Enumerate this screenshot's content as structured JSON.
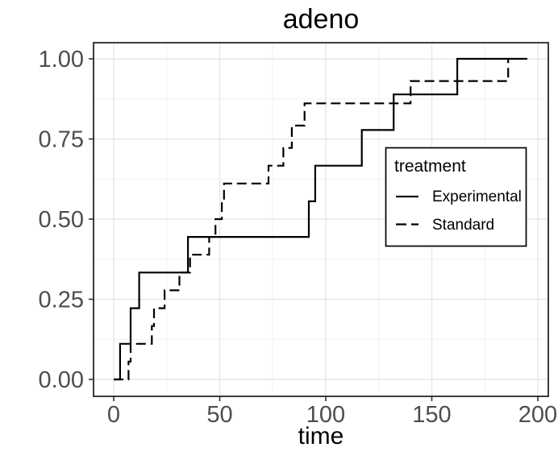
{
  "chart_data": {
    "type": "line",
    "subtype": "kaplan-meier-cumulative-event-step",
    "title": "adeno",
    "xlabel": "time",
    "ylabel": "",
    "xlim": [
      0,
      200
    ],
    "ylim": [
      0,
      1
    ],
    "x_ticks": [
      {
        "v": 0,
        "label": "0"
      },
      {
        "v": 50,
        "label": "50"
      },
      {
        "v": 100,
        "label": "100"
      },
      {
        "v": 150,
        "label": "150"
      },
      {
        "v": 200,
        "label": "200"
      }
    ],
    "y_ticks": [
      {
        "v": 0,
        "label": "0.00"
      },
      {
        "v": 0.25,
        "label": "0.25"
      },
      {
        "v": 0.5,
        "label": "0.50"
      },
      {
        "v": 0.75,
        "label": "0.75"
      },
      {
        "v": 1,
        "label": "1.00"
      }
    ],
    "grid": {
      "major": true,
      "minor": true,
      "major_color": "#e6e6e6",
      "minor_color": "#f2f2f2"
    },
    "panel": {
      "background": "#ffffff",
      "border_color": "#1a1a1a"
    },
    "axis_text_color": "#4d4d4d",
    "legend": {
      "title": "treatment",
      "position": "inside-right",
      "entries": [
        {
          "label": "Experimental",
          "linetype": "solid"
        },
        {
          "label": "Standard",
          "linetype": "dashed"
        }
      ]
    },
    "series": [
      {
        "name": "Experimental",
        "linetype": "solid",
        "color": "#000000",
        "points": [
          [
            0,
            0
          ],
          [
            3,
            0.1111
          ],
          [
            8,
            0.2222
          ],
          [
            12,
            0.3333
          ],
          [
            35,
            0.4444
          ],
          [
            92,
            0.5556
          ],
          [
            95,
            0.6667
          ],
          [
            117,
            0.7778
          ],
          [
            132,
            0.8889
          ],
          [
            162,
            1.0
          ]
        ],
        "end_time": 195
      },
      {
        "name": "Standard",
        "linetype": "dashed",
        "color": "#000000",
        "points": [
          [
            0,
            0
          ],
          [
            7,
            0.0556
          ],
          [
            8,
            0.1111
          ],
          [
            18,
            0.1667
          ],
          [
            19,
            0.2222
          ],
          [
            24,
            0.2778
          ],
          [
            31,
            0.3333
          ],
          [
            36,
            0.3889
          ],
          [
            45,
            0.4444
          ],
          [
            48,
            0.5
          ],
          [
            51,
            0.5556
          ],
          [
            52,
            0.6111
          ],
          [
            73,
            0.6667
          ],
          [
            80,
            0.7222
          ],
          [
            84,
            0.7917
          ],
          [
            90,
            0.8611
          ],
          [
            140,
            0.9306
          ],
          [
            186,
            1.0
          ]
        ],
        "end_time": 186
      }
    ]
  }
}
